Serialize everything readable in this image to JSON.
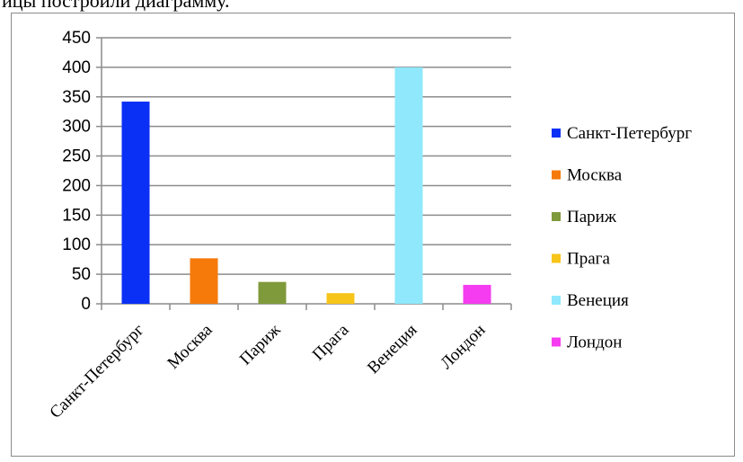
{
  "page": {
    "top_text": "ицы построили диаграмму."
  },
  "chart_data": {
    "type": "bar",
    "title": "",
    "xlabel": "",
    "ylabel": "",
    "categories": [
      "Санкт-Петербург",
      "Москва",
      "Париж",
      "Прага",
      "Венеция",
      "Лондон"
    ],
    "values": [
      342,
      77,
      37,
      18,
      400,
      32
    ],
    "colors": [
      "#0a2ff5",
      "#f57a0a",
      "#7f9a3b",
      "#f7c41a",
      "#8fe8fb",
      "#f53cf0"
    ],
    "ylim": [
      0,
      450
    ],
    "yticks": [
      0,
      50,
      100,
      150,
      200,
      250,
      300,
      350,
      400,
      450
    ],
    "grid": true,
    "legend_position": "right",
    "legend": [
      "Санкт-Петербург",
      "Москва",
      "Париж",
      "Прага",
      "Венеция",
      "Лондон"
    ]
  }
}
